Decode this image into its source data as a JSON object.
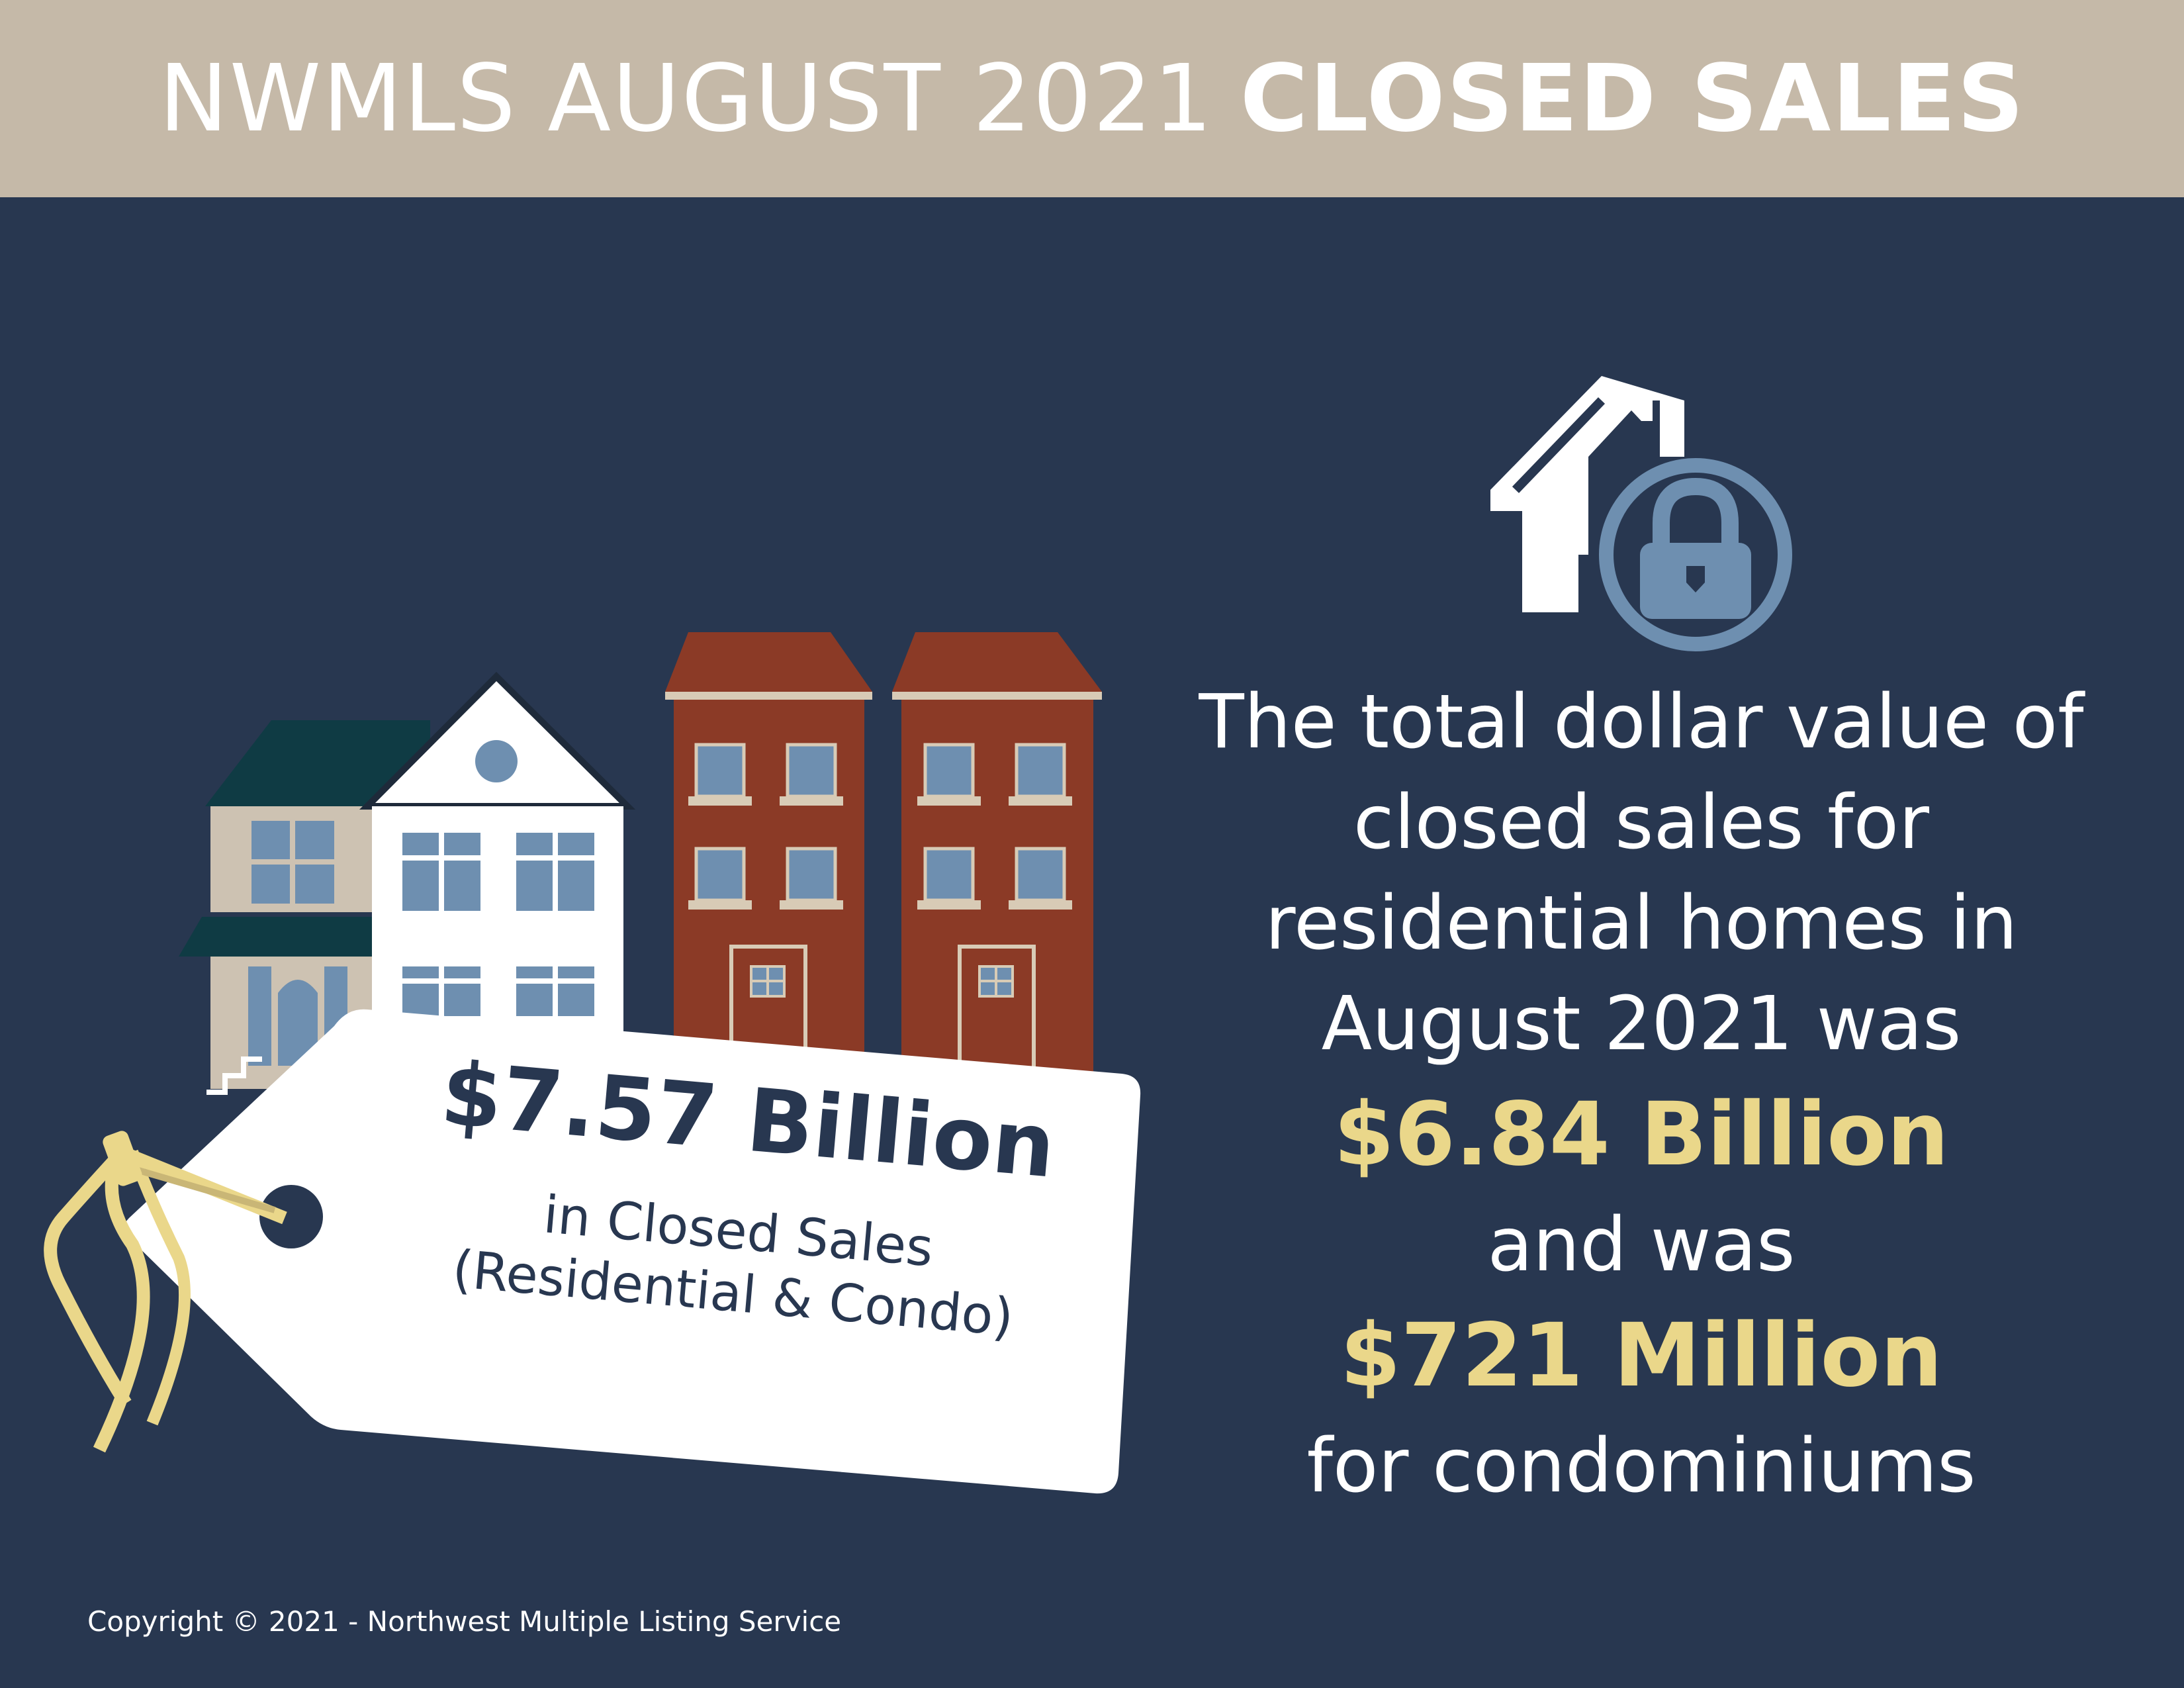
{
  "header": {
    "title_light": "NWMLS AUGUST 2021",
    "title_bold": "CLOSED SALES"
  },
  "price_tag": {
    "amount": "$7.57 Billion",
    "label_line1": "in Closed Sales",
    "label_line2": "(Residential & Condo)"
  },
  "summary": {
    "line1": "The total dollar value of",
    "line2": "closed sales for",
    "line3": "residential homes in",
    "line4": "August 2021 was",
    "residential_value": "$6.84 Billion",
    "connector": "and was",
    "condo_value": "$721 Million",
    "condo_suffix": "for condominiums"
  },
  "footer": {
    "copyright": "Copyright © 2021 - Northwest Multiple Listing Service"
  },
  "icons": {
    "house": "house-icon",
    "lock": "lock-icon"
  },
  "colors": {
    "background": "#283750",
    "header": "#c5b9a8",
    "accent": "#ead78a",
    "brick": "#8b3a26",
    "window": "#6e8fb0"
  }
}
